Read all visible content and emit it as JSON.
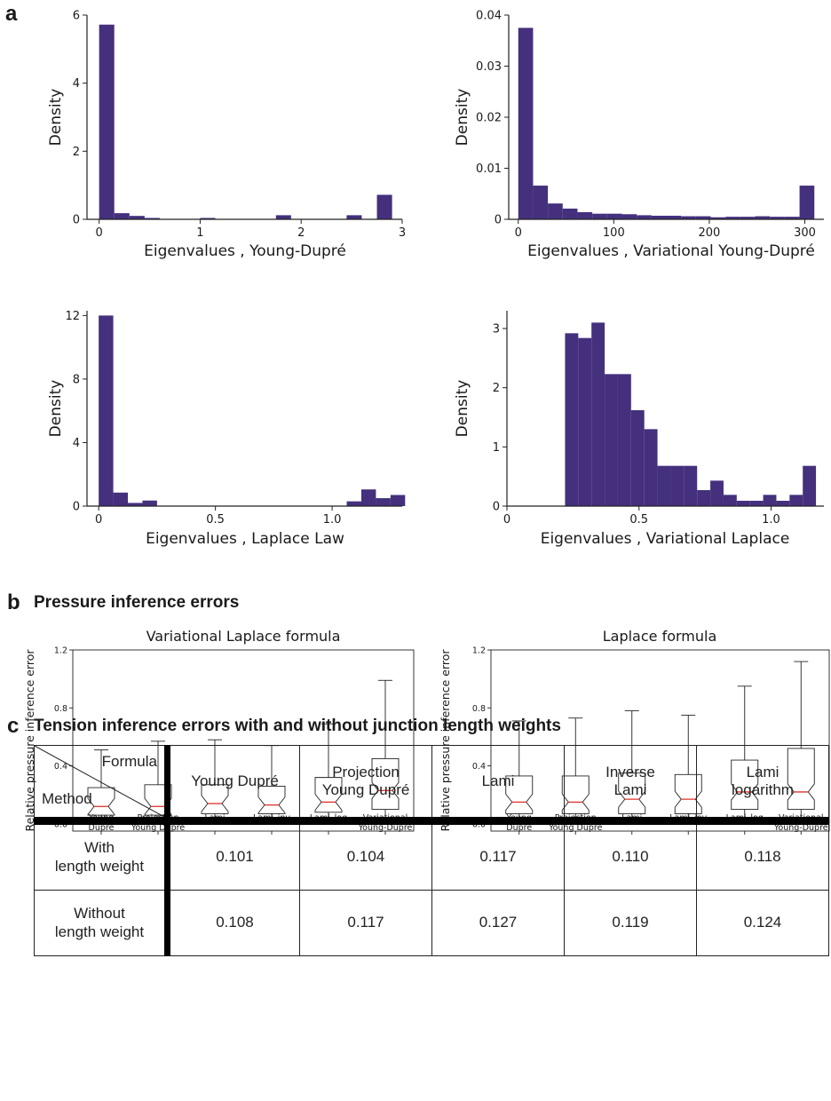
{
  "panel_a": {
    "letter": "a"
  },
  "panel_b": {
    "letter": "b",
    "title": "Pressure inference errors"
  },
  "panel_c": {
    "letter": "c",
    "title": "Tension inference errors with and without junction length weights"
  },
  "colors": {
    "bar": "#44307d",
    "median": "#e0302b",
    "axis": "#222222"
  },
  "chart_data": [
    {
      "type": "bar",
      "kind": "histogram",
      "xlabel": "Eigenvalues , Young-Dupré",
      "ylabel": "Density",
      "xlim": [
        -0.12,
        3
      ],
      "ylim": [
        0,
        6
      ],
      "bin_width": 0.15,
      "xticks": [
        0,
        1,
        2,
        3
      ],
      "xticklabels": [
        "0",
        "1",
        "2",
        "3"
      ],
      "yticks": [
        0,
        2,
        4,
        6
      ],
      "yticklabels": [
        "0",
        "2",
        "4",
        "6"
      ],
      "x": [
        0.0,
        0.15,
        0.3,
        0.45,
        1.0,
        1.75,
        2.45,
        2.75
      ],
      "values": [
        5.72,
        0.18,
        0.1,
        0.04,
        0.04,
        0.12,
        0.12,
        0.72
      ]
    },
    {
      "type": "bar",
      "kind": "histogram",
      "xlabel": "Eigenvalues , Variational Young-Dupré",
      "ylabel": "Density",
      "xlim": [
        -10,
        320
      ],
      "ylim": [
        0,
        0.04
      ],
      "bin_width": 15.5,
      "xticks": [
        0,
        100,
        200,
        300
      ],
      "xticklabels": [
        "0",
        "100",
        "200",
        "300"
      ],
      "yticks": [
        0,
        0.01,
        0.02,
        0.03,
        0.04
      ],
      "yticklabels": [
        "0",
        "0.01",
        "0.02",
        "0.03",
        "0.04"
      ],
      "x": [
        0,
        15.5,
        31,
        46.5,
        62,
        77.5,
        93,
        108.5,
        124,
        139.5,
        155,
        170.5,
        186,
        201.5,
        217,
        232.5,
        248,
        263.5,
        279,
        294.5
      ],
      "values": [
        0.0375,
        0.0066,
        0.0031,
        0.0021,
        0.0014,
        0.0011,
        0.0011,
        0.001,
        0.0008,
        0.0007,
        0.0007,
        0.0006,
        0.0006,
        0.0004,
        0.0005,
        0.0005,
        0.0006,
        0.0005,
        0.0005,
        0.0066
      ]
    },
    {
      "type": "bar",
      "kind": "histogram",
      "xlabel": "Eigenvalues , Laplace Law",
      "ylabel": "Density",
      "xlim": [
        -0.05,
        1.3
      ],
      "ylim": [
        0,
        12.3
      ],
      "bin_width": 0.0625,
      "xticks": [
        0,
        0.5,
        1.0
      ],
      "xticklabels": [
        "0",
        "0.5",
        "1.0"
      ],
      "yticks": [
        0,
        4,
        8,
        12
      ],
      "yticklabels": [
        "0",
        "4",
        "8",
        "12"
      ],
      "x": [
        0.0,
        0.0625,
        0.125,
        0.1875,
        1.0625,
        1.125,
        1.1875,
        1.25
      ],
      "values": [
        12.0,
        0.85,
        0.2,
        0.35,
        0.3,
        1.05,
        0.5,
        0.7
      ]
    },
    {
      "type": "bar",
      "kind": "histogram",
      "xlabel": "Eigenvalues , Variational Laplace",
      "ylabel": "Density",
      "xlim": [
        0,
        1.2
      ],
      "ylim": [
        0,
        3.3
      ],
      "bin_width": 0.05,
      "xticks": [
        0,
        0.5,
        1.0
      ],
      "xticklabels": [
        "0",
        "0.5",
        "1.0"
      ],
      "yticks": [
        0,
        1,
        2,
        3
      ],
      "yticklabels": [
        "0",
        "1",
        "2",
        "3"
      ],
      "x": [
        0.22,
        0.27,
        0.32,
        0.37,
        0.42,
        0.47,
        0.52,
        0.57,
        0.62,
        0.67,
        0.72,
        0.77,
        0.82,
        0.87,
        0.92,
        0.97,
        1.02,
        1.07,
        1.12
      ],
      "values": [
        2.92,
        2.84,
        3.1,
        2.23,
        2.23,
        1.62,
        1.3,
        0.68,
        0.68,
        0.68,
        0.27,
        0.43,
        0.19,
        0.09,
        0.09,
        0.19,
        0.09,
        0.19,
        0.68
      ]
    },
    {
      "type": "box",
      "title": "Variational Laplace formula",
      "ylabel": "Relative pressure inference error",
      "ylim": [
        -0.05,
        1.2
      ],
      "yticks": [
        0,
        0.4,
        0.8,
        1.2
      ],
      "yticklabels": [
        "0.0",
        "0.4",
        "0.8",
        "1.2"
      ],
      "categories": [
        "Young\nDupré",
        "Projection\nYoung Dupré",
        "Lami",
        "Lami_inv",
        "Lami_log",
        "Variational\nYoung-Dupré"
      ],
      "boxes": [
        {
          "whislo": 0.0,
          "q1": 0.06,
          "med": 0.12,
          "q3": 0.25,
          "whishi": 0.51
        },
        {
          "whislo": 0.0,
          "q1": 0.06,
          "med": 0.12,
          "q3": 0.27,
          "whishi": 0.57
        },
        {
          "whislo": 0.0,
          "q1": 0.07,
          "med": 0.14,
          "q3": 0.27,
          "whishi": 0.58
        },
        {
          "whislo": 0.0,
          "q1": 0.07,
          "med": 0.13,
          "q3": 0.26,
          "whishi": 0.54
        },
        {
          "whislo": 0.0,
          "q1": 0.08,
          "med": 0.15,
          "q3": 0.32,
          "whishi": 0.69
        },
        {
          "whislo": 0.0,
          "q1": 0.1,
          "med": 0.23,
          "q3": 0.45,
          "whishi": 0.99
        }
      ]
    },
    {
      "type": "box",
      "title": "Laplace formula",
      "ylabel": "Relative pressure inference error",
      "ylim": [
        -0.05,
        1.2
      ],
      "yticks": [
        0,
        0.4,
        0.8,
        1.2
      ],
      "yticklabels": [
        "0.0",
        "0.4",
        "0.8",
        "1.2"
      ],
      "categories": [
        "Young\nDupré",
        "Projection\nYoung Dupré",
        "Lami",
        "Lami_inv",
        "Lami_log",
        "Variational\nYoung-Dupré"
      ],
      "boxes": [
        {
          "whislo": 0.0,
          "q1": 0.07,
          "med": 0.15,
          "q3": 0.33,
          "whishi": 0.71
        },
        {
          "whislo": 0.0,
          "q1": 0.07,
          "med": 0.15,
          "q3": 0.33,
          "whishi": 0.73
        },
        {
          "whislo": 0.0,
          "q1": 0.07,
          "med": 0.17,
          "q3": 0.35,
          "whishi": 0.78
        },
        {
          "whislo": 0.0,
          "q1": 0.07,
          "med": 0.17,
          "q3": 0.34,
          "whishi": 0.75
        },
        {
          "whislo": 0.0,
          "q1": 0.1,
          "med": 0.22,
          "q3": 0.44,
          "whishi": 0.95
        },
        {
          "whislo": 0.01,
          "q1": 0.1,
          "med": 0.22,
          "q3": 0.52,
          "whishi": 1.12
        }
      ]
    },
    {
      "type": "table",
      "corner": {
        "formula": "Formula",
        "method": "Method"
      },
      "columns": [
        "Young Dupré",
        "Projection\nYoung Dupré",
        "Lami",
        "Inverse\nLami",
        "Lami\nlogarithm"
      ],
      "rows": [
        {
          "label": "With\nlength weight",
          "values": [
            "0.101",
            "0.104",
            "0.117",
            "0.110",
            "0.118"
          ]
        },
        {
          "label": "Without\nlength weight",
          "values": [
            "0.108",
            "0.117",
            "0.127",
            "0.119",
            "0.124"
          ]
        }
      ]
    }
  ]
}
